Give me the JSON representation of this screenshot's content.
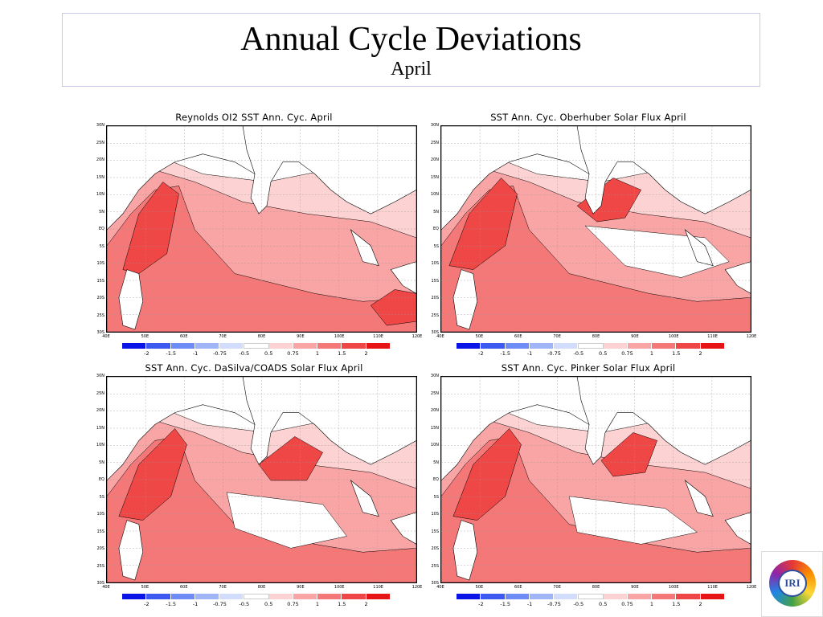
{
  "title": "Annual Cycle Deviations",
  "subtitle": "April",
  "panels": [
    {
      "title": "Reynolds OI2 SST Ann. Cyc. April"
    },
    {
      "title": "SST Ann. Cyc. Oberhuber Solar Flux April"
    },
    {
      "title": "SST Ann. Cyc. DaSilva/COADS Solar Flux April"
    },
    {
      "title": "SST Ann. Cyc. Pinker Solar Flux April"
    }
  ],
  "lat_labels": [
    "30N",
    "25N",
    "20N",
    "15N",
    "10N",
    "5N",
    "EQ",
    "5S",
    "10S",
    "15S",
    "20S",
    "25S",
    "30S"
  ],
  "lon_labels": [
    "40E",
    "50E",
    "60E",
    "70E",
    "80E",
    "90E",
    "100E",
    "110E",
    "120E"
  ],
  "colorbar": {
    "labels": [
      "-2",
      "-1.5",
      "-1",
      "-0.75",
      "-0.5",
      "0.5",
      "0.75",
      "1",
      "1.5",
      "2"
    ],
    "colors": [
      "#0a14e6",
      "#3c5af0",
      "#6e8cf5",
      "#a0b4f8",
      "#d2dcfb",
      "#ffffff",
      "#fcd2d2",
      "#f9a5a5",
      "#f47878",
      "#ef4646",
      "#e61414"
    ]
  },
  "logo": {
    "text": "IRI",
    "icon": "iri-logo-icon"
  }
}
